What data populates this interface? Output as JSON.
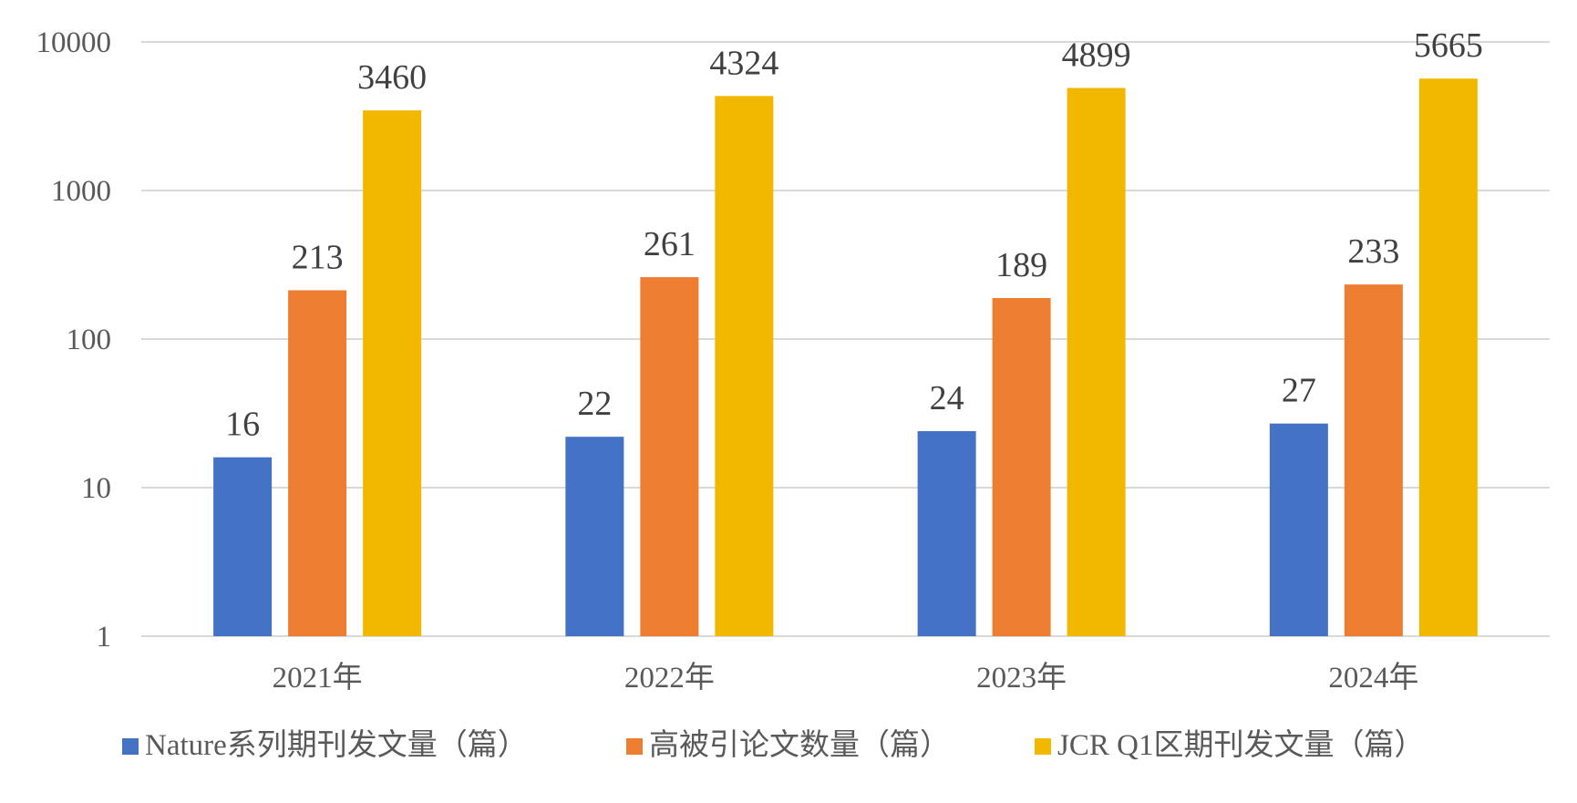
{
  "chart_data": {
    "type": "bar",
    "scale": "log",
    "categories": [
      "2021年",
      "2022年",
      "2023年",
      "2024年"
    ],
    "series": [
      {
        "name": "Nature系列期刊发文量（篇）",
        "color": "#4472C4",
        "values": [
          16,
          22,
          24,
          27
        ]
      },
      {
        "name": "高被引论文数量（篇）",
        "color": "#ED7D31",
        "values": [
          213,
          261,
          189,
          233
        ]
      },
      {
        "name": "JCR Q1区期刊发文量（篇）",
        "color": "#F2B800",
        "values": [
          3460,
          4324,
          4899,
          5665
        ]
      }
    ],
    "yticks": [
      1,
      10,
      100,
      1000,
      10000
    ],
    "ytick_labels": [
      "1",
      "10",
      "100",
      "1000",
      "10000"
    ],
    "ylim": [
      1,
      10000
    ],
    "grid": true,
    "legend_position": "bottom",
    "data_labels": true,
    "title": "",
    "xlabel": "",
    "ylabel": ""
  }
}
